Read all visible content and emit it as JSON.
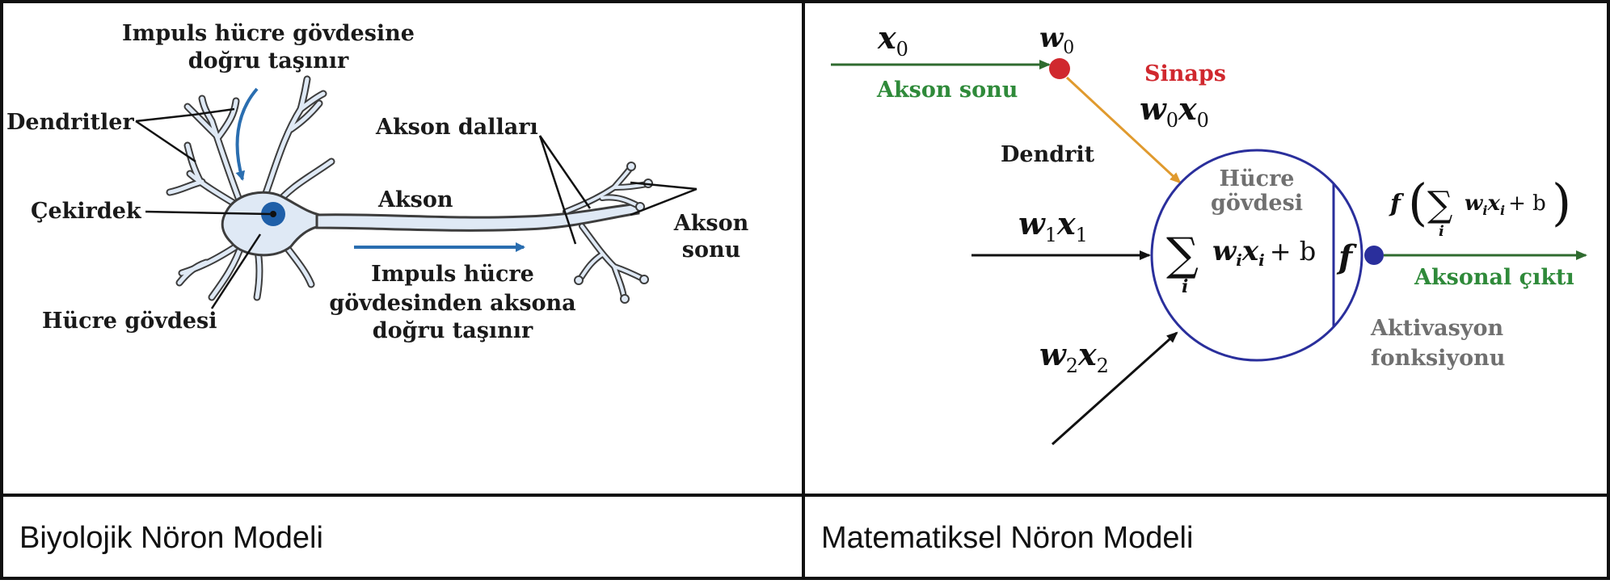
{
  "colors": {
    "border": "#111111",
    "neuron_fill": "#dfe9f5",
    "neuron_stroke": "#3d3d3d",
    "nucleus": "#1f5fa8",
    "impulse_arrow": "#2a6eb0",
    "green": "#2f8a3a",
    "red": "#d0282e",
    "orange": "#e09a2e",
    "circle": "#2a2f9c",
    "gray_text": "#707070"
  },
  "panels": {
    "biological": {
      "caption": "Biyolojik Nöron Modeli",
      "labels": {
        "impulse_in_line1": "Impuls hücre gövdesine",
        "impulse_in_line2": "doğru taşınır",
        "dendrites": "Dendritler",
        "nucleus": "Çekirdek",
        "cell_body": "Hücre gövdesi",
        "axon_branches": "Akson dalları",
        "axon": "Akson",
        "axon_terminal_line1": "Akson",
        "axon_terminal_line2": "sonu",
        "impulse_out_line1": "Impuls hücre",
        "impulse_out_line2": "gövdesinden aksona",
        "impulse_out_line3": "doğru taşınır"
      }
    },
    "mathematical": {
      "caption": "Matematiksel Nöron Modeli",
      "labels": {
        "x0_base": "x",
        "x0_sub": "0",
        "w0_base": "w",
        "w0_sub": "0",
        "axon_end": "Akson sonu",
        "synapse": "Sinaps",
        "w0x0_w": "w",
        "w0x0_wsub": "0",
        "w0x0_x": "x",
        "w0x0_xsub": "0",
        "dendrite": "Dendrit",
        "cell_body_line1": "Hücre",
        "cell_body_line2": "gövdesi",
        "w1x1_w": "w",
        "w1x1_wsub": "1",
        "w1x1_x": "x",
        "w1x1_xsub": "1",
        "w2x2_w": "w",
        "w2x2_wsub": "2",
        "w2x2_x": "x",
        "w2x2_xsub": "2",
        "sum_sign": "∑",
        "sum_index": "i",
        "sum_w": "w",
        "sum_wsub": "i",
        "sum_x": "x",
        "sum_xsub": "i",
        "sum_plus_b": "+ b",
        "f_symbol": "f",
        "out_f": "f",
        "out_lparen": "(",
        "out_sum_sign": "∑",
        "out_sum_index": "i",
        "out_w": "w",
        "out_wsub": "i",
        "out_x": "x",
        "out_xsub": "i",
        "out_plus_b": "+ b",
        "out_rparen": ")",
        "axonal_output": "Aksonal çıktı",
        "activation_line1": "Aktivasyon",
        "activation_line2": "fonksiyonu"
      }
    }
  }
}
